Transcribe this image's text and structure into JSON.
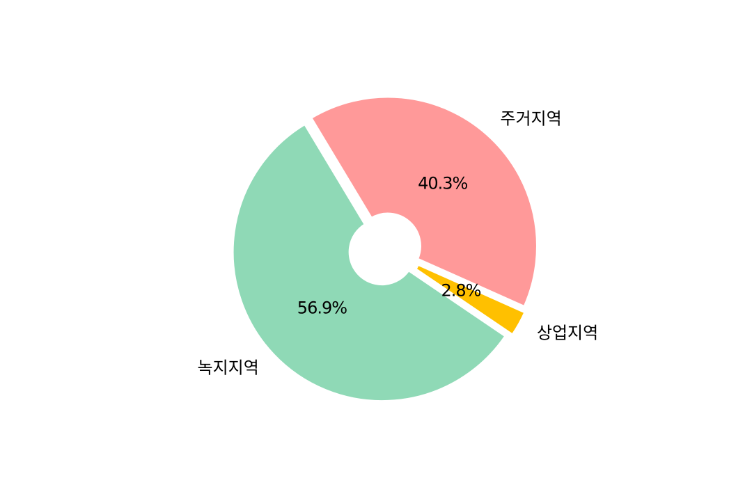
{
  "chart_data": {
    "type": "pie",
    "title": "",
    "categories": [
      "주거지역",
      "상업지역",
      "녹지지역"
    ],
    "values": [
      40.3,
      2.8,
      56.9
    ],
    "value_labels": [
      "40.3%",
      "2.8%",
      "56.9%"
    ],
    "colors": [
      "#ff9999",
      "#ffc000",
      "#8fd9b6"
    ],
    "donut": true,
    "legend": "none"
  }
}
